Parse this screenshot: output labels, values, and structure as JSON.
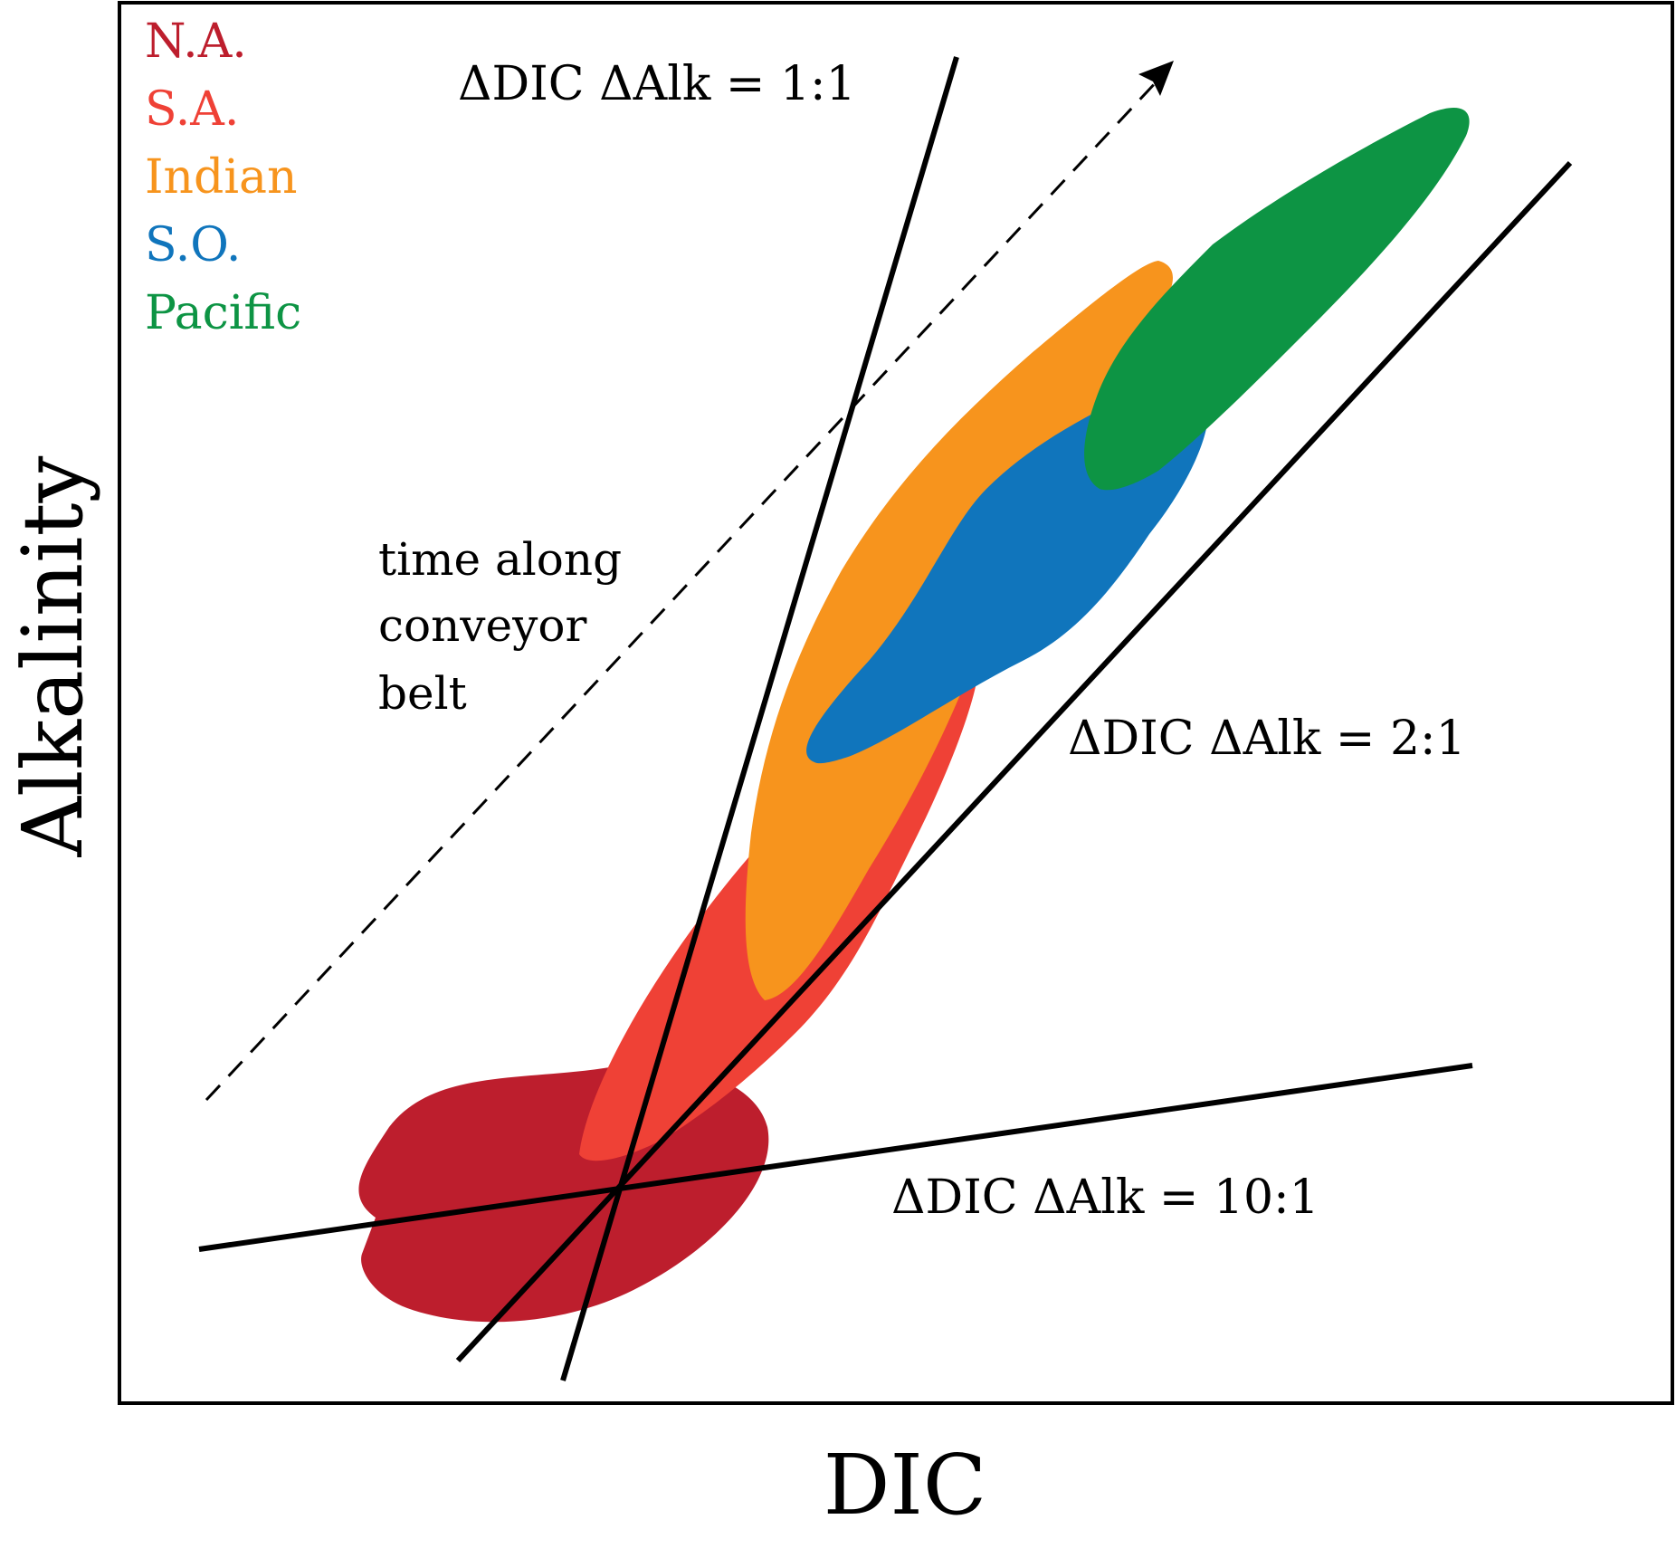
{
  "axes": {
    "xlabel": "DIC",
    "ylabel": "Alkalinity"
  },
  "legend": [
    {
      "label": "N.A.",
      "color": "#bd1e2d"
    },
    {
      "label": "S.A.",
      "color": "#ef4136"
    },
    {
      "label": "Indian",
      "color": "#f7941d"
    },
    {
      "label": "S.O.",
      "color": "#1075bc"
    },
    {
      "label": "Pacific",
      "color": "#0d9444"
    }
  ],
  "lines": [
    {
      "id": "ratio-1-1",
      "label": "ΔDIC ΔAlk = 1:1"
    },
    {
      "id": "ratio-2-1",
      "label": "ΔDIC ΔAlk = 2:1"
    },
    {
      "id": "ratio-10-1",
      "label": "ΔDIC ΔAlk = 10:1"
    }
  ],
  "annotation": {
    "lines": [
      "time along",
      "conveyor",
      "belt"
    ]
  }
}
